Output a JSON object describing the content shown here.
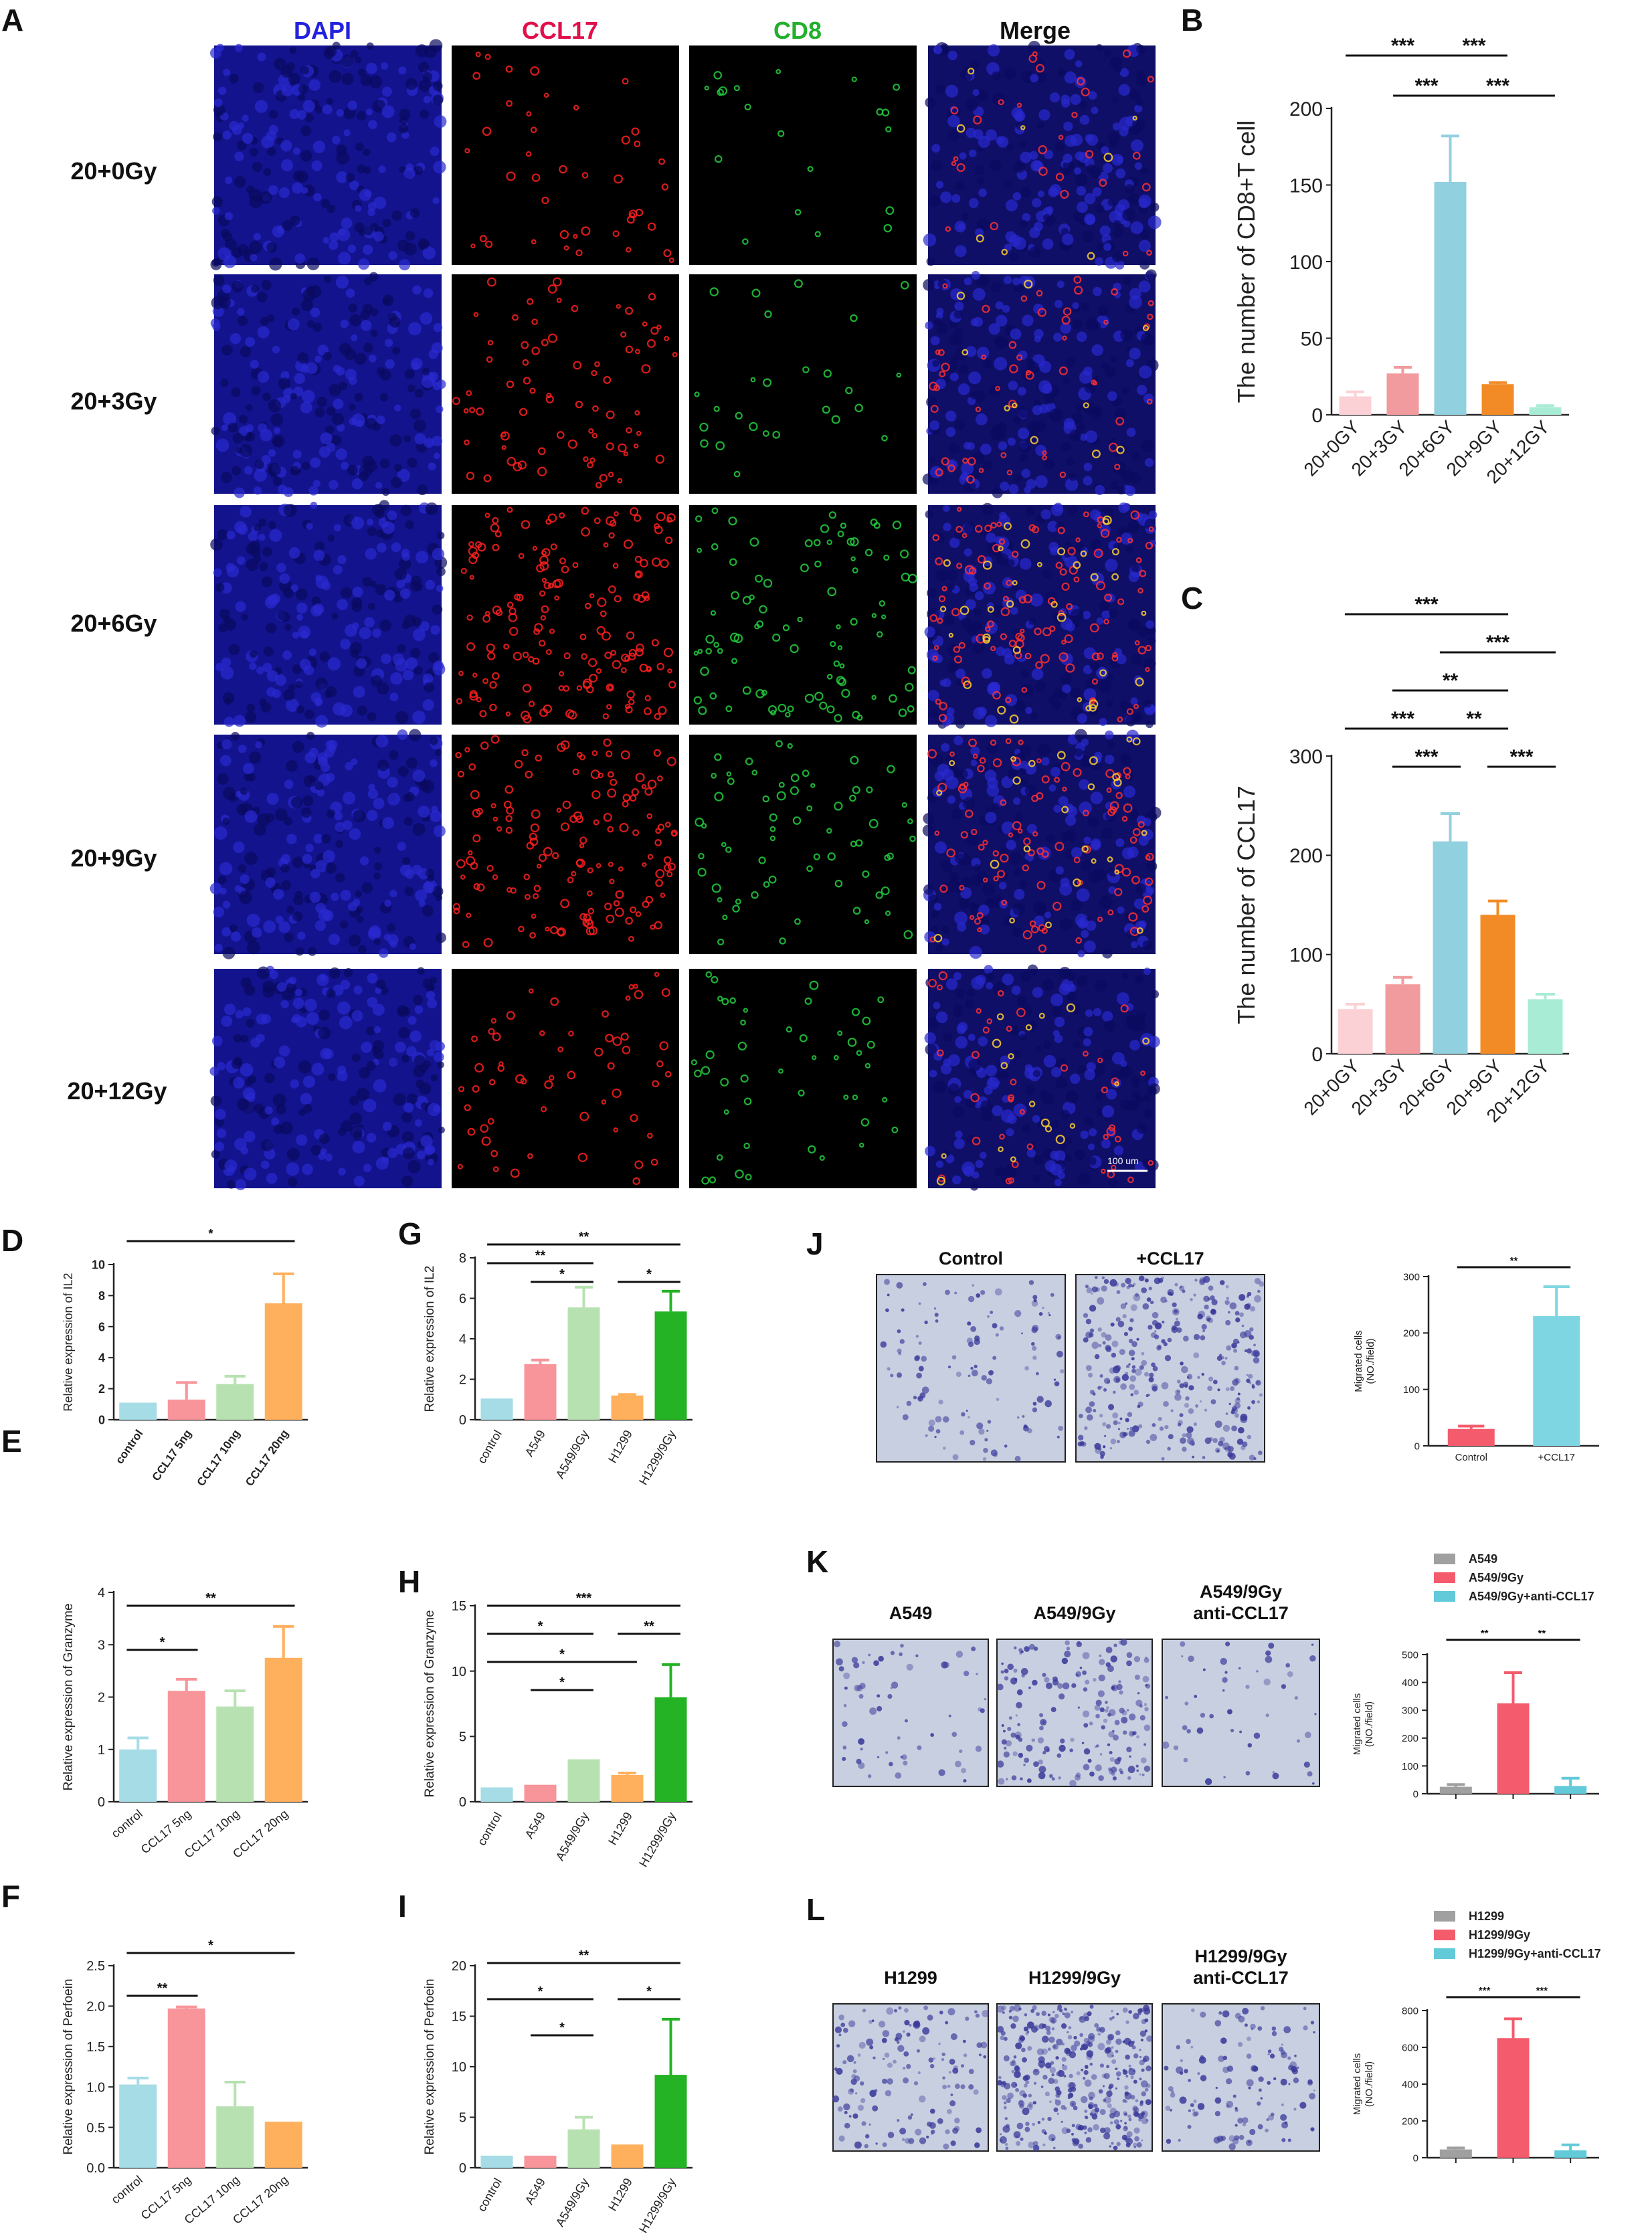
{
  "colors": {
    "dapi": "#1a1aa8",
    "ccl17": "#d8192e",
    "cd8": "#1fa62e",
    "merge": "#5a1040",
    "crystal_violet": "#3a3a9a",
    "transwell_bg": "#c8cfe0"
  },
  "panels": {
    "A": {
      "letter": "A",
      "column_titles": [
        {
          "label": "DAPI",
          "color": "#2222dd"
        },
        {
          "label": "CCL17",
          "color": "#e0104a"
        },
        {
          "label": "CD8",
          "color": "#22b02c"
        },
        {
          "label": "Merge",
          "color": "#111111"
        }
      ],
      "row_titles": [
        "20+0Gy",
        "20+3Gy",
        "20+6Gy",
        "20+9Gy",
        "20+12Gy"
      ],
      "scale_bar": "100 um",
      "signal_levels": {
        "ccl17": [
          0.25,
          0.45,
          0.95,
          0.85,
          0.35
        ],
        "cd8": [
          0.15,
          0.2,
          0.7,
          0.5,
          0.35
        ]
      }
    },
    "J": {
      "letter": "J",
      "images": [
        "Control",
        "+CCL17"
      ],
      "density": [
        0.3,
        0.85
      ]
    },
    "K": {
      "letter": "K",
      "images": [
        "A549",
        "A549/9Gy",
        "A549/9Gy\nanti-CCL17"
      ],
      "density": [
        0.15,
        0.45,
        0.12
      ]
    },
    "L": {
      "letter": "L",
      "images": [
        "H1299",
        "H1299/9Gy",
        "H1299/9Gy\nanti-CCL17"
      ],
      "density": [
        0.35,
        0.9,
        0.3
      ]
    }
  },
  "chart_data": [
    {
      "panel": "B",
      "type": "bar",
      "categories": [
        "20+0GY",
        "20+3GY",
        "20+6GY",
        "20+9GY",
        "20+12GY"
      ],
      "values": [
        12,
        27,
        152,
        20,
        5
      ],
      "errors": [
        3,
        4,
        30,
        1,
        1
      ],
      "colors": [
        "#fbd1d5",
        "#f29b9e",
        "#91d0df",
        "#f28b25",
        "#a9ecd6"
      ],
      "ylabel": "The number of CD8+T cell",
      "ylim": [
        0,
        200
      ],
      "yticks": [
        0,
        50,
        100,
        150,
        200
      ],
      "significance": [
        {
          "from": 0,
          "to": 2,
          "level": 0,
          "label": "***"
        },
        {
          "from": 2,
          "to": 3,
          "level": 0,
          "label": "***"
        },
        {
          "from": 1,
          "to": 2,
          "level": 1,
          "label": "***"
        },
        {
          "from": 2,
          "to": 4,
          "level": 1,
          "label": "***"
        }
      ]
    },
    {
      "panel": "C",
      "type": "bar",
      "categories": [
        "20+0GY",
        "20+3GY",
        "20+6GY",
        "20+9GY",
        "20+12GY"
      ],
      "values": [
        45,
        70,
        214,
        140,
        55
      ],
      "errors": [
        5,
        7,
        28,
        14,
        5
      ],
      "colors": [
        "#fbd1d5",
        "#f29b9e",
        "#91d0df",
        "#f28b25",
        "#a9ecd6"
      ],
      "ylabel": "The number of CCL17",
      "ylim": [
        0,
        300
      ],
      "yticks": [
        0,
        100,
        200,
        300
      ],
      "significance": [
        {
          "from": 0,
          "to": 3,
          "level": 0,
          "label": "***"
        },
        {
          "from": 2,
          "to": 4,
          "level": 1,
          "label": "***"
        },
        {
          "from": 1,
          "to": 3,
          "level": 2,
          "label": "**"
        },
        {
          "from": 0,
          "to": 2,
          "level": 3,
          "label": "***"
        },
        {
          "from": 2,
          "to": 3,
          "level": 3,
          "label": "**"
        },
        {
          "from": 1,
          "to": 2,
          "level": 4,
          "label": "***"
        },
        {
          "from": 3,
          "to": 4,
          "level": 4,
          "label": "***"
        }
      ]
    },
    {
      "panel": "D",
      "type": "bar",
      "categories": [
        "control",
        "CCL17 5ng",
        "CCL17 10ng",
        "CCL17 20ng"
      ],
      "values": [
        1.1,
        1.3,
        2.3,
        7.5
      ],
      "errors": [
        0,
        1.1,
        0.5,
        1.9
      ],
      "colors": [
        "#a6dce6",
        "#f7959b",
        "#b7e1b1",
        "#ffb05c"
      ],
      "ylabel": "Relative expression of IL2",
      "ylim": [
        0,
        10
      ],
      "yticks": [
        0,
        2,
        4,
        6,
        8,
        10
      ],
      "bold_ticks": true,
      "significance": [
        {
          "from": 0,
          "to": 3,
          "level": 0,
          "label": "*"
        }
      ]
    },
    {
      "panel": "E",
      "type": "bar",
      "categories": [
        "control",
        "CCL17 5ng",
        "CCL17 10ng",
        "CCL17 20ng"
      ],
      "values": [
        1.0,
        2.12,
        1.82,
        2.75
      ],
      "errors": [
        0.22,
        0.22,
        0.3,
        0.6
      ],
      "colors": [
        "#a6dce6",
        "#f7959b",
        "#b7e1b1",
        "#ffb05c"
      ],
      "ylabel": "Relative expression of Granzyme",
      "ylim": [
        0,
        4
      ],
      "yticks": [
        0,
        1,
        2,
        3,
        4
      ],
      "significance": [
        {
          "from": 0,
          "to": 3,
          "level": 0,
          "label": "**"
        },
        {
          "from": 0,
          "to": 1,
          "level": 1,
          "label": "*"
        }
      ]
    },
    {
      "panel": "F",
      "type": "bar",
      "categories": [
        "control",
        "CCL17 5ng",
        "CCL17 10ng",
        "CCL17 20ng"
      ],
      "values": [
        1.03,
        1.97,
        0.76,
        0.57
      ],
      "errors": [
        0.08,
        0.02,
        0.3,
        0
      ],
      "colors": [
        "#a6dce6",
        "#f7959b",
        "#b7e1b1",
        "#ffb05c"
      ],
      "ylabel": "Relative expression of Perfoein",
      "ylim": [
        0,
        2.5
      ],
      "yticks": [
        0.0,
        0.5,
        1.0,
        1.5,
        2.0,
        2.5
      ],
      "significance": [
        {
          "from": 0,
          "to": 3,
          "level": 0,
          "label": "*"
        },
        {
          "from": 0,
          "to": 1,
          "level": 1,
          "label": "**"
        }
      ]
    },
    {
      "panel": "G",
      "type": "bar",
      "categories": [
        "control",
        "A549",
        "A549/9Gy",
        "H1299",
        "H1299/9Gy"
      ],
      "values": [
        1.05,
        2.75,
        5.55,
        1.2,
        5.35
      ],
      "errors": [
        0,
        0.2,
        1.0,
        0.05,
        1.0
      ],
      "colors": [
        "#a6dce6",
        "#f7959b",
        "#b7e1b1",
        "#ffb05c",
        "#24b324"
      ],
      "ylabel": "Relative expression of IL2",
      "ylim": [
        0,
        8
      ],
      "yticks": [
        0,
        2,
        4,
        6,
        8
      ],
      "significance": [
        {
          "from": 0,
          "to": 4,
          "level": 0,
          "label": "**"
        },
        {
          "from": 0,
          "to": 2,
          "level": 1,
          "label": "**"
        },
        {
          "from": 1,
          "to": 2,
          "level": 2,
          "label": "*"
        },
        {
          "from": 3,
          "to": 4,
          "level": 2,
          "label": "*"
        }
      ]
    },
    {
      "panel": "H",
      "type": "bar",
      "categories": [
        "control",
        "A549",
        "A549/9Gy",
        "H1299",
        "H1299/9Gy"
      ],
      "values": [
        1.1,
        1.3,
        3.25,
        2.05,
        8.0
      ],
      "errors": [
        0,
        0,
        0,
        0.15,
        2.5
      ],
      "colors": [
        "#a6dce6",
        "#f7959b",
        "#b7e1b1",
        "#ffb05c",
        "#24b324"
      ],
      "ylabel": "Relative expression of Granzyme",
      "ylim": [
        0,
        15
      ],
      "yticks": [
        0,
        5,
        10,
        15
      ],
      "significance": [
        {
          "from": 0,
          "to": 4,
          "level": 0,
          "label": "***"
        },
        {
          "from": 0,
          "to": 2,
          "level": 1,
          "label": "*"
        },
        {
          "from": 3,
          "to": 4,
          "level": 1,
          "label": "**"
        },
        {
          "from": 0,
          "to": 3,
          "level": 2,
          "label": "*"
        },
        {
          "from": 1,
          "to": 2,
          "level": 3,
          "label": "*"
        }
      ]
    },
    {
      "panel": "I",
      "type": "bar",
      "categories": [
        "control",
        "A549",
        "A549/9Gy",
        "H1299",
        "H1299/9Gy"
      ],
      "values": [
        1.2,
        1.2,
        3.8,
        2.3,
        9.2
      ],
      "errors": [
        0,
        0,
        1.2,
        0,
        5.5
      ],
      "colors": [
        "#a6dce6",
        "#f7959b",
        "#b7e1b1",
        "#ffb05c",
        "#24b324"
      ],
      "ylabel": "Relative expression of Perfoein",
      "ylim": [
        0,
        20
      ],
      "yticks": [
        0,
        5,
        10,
        15,
        20
      ],
      "significance": [
        {
          "from": 0,
          "to": 4,
          "level": 0,
          "label": "**"
        },
        {
          "from": 0,
          "to": 2,
          "level": 1,
          "label": "*"
        },
        {
          "from": 3,
          "to": 4,
          "level": 1,
          "label": "*"
        },
        {
          "from": 1,
          "to": 2,
          "level": 2,
          "label": "*"
        }
      ]
    },
    {
      "panel": "J",
      "type": "bar",
      "categories": [
        "Control",
        "+CCL17"
      ],
      "values": [
        30,
        230
      ],
      "errors": [
        5,
        52
      ],
      "colors": [
        "#f45b6c",
        "#7fd6e3"
      ],
      "ylabel": "Migrated cells\n(NO./field)",
      "ylim": [
        0,
        300
      ],
      "yticks": [
        0,
        100,
        200,
        300
      ],
      "significance": [
        {
          "from": 0,
          "to": 1,
          "level": 0,
          "label": "**"
        }
      ]
    },
    {
      "panel": "K",
      "type": "bar",
      "categories": [
        "",
        "",
        ""
      ],
      "values": [
        25,
        325,
        28
      ],
      "errors": [
        8,
        110,
        28
      ],
      "colors": [
        "#a0a0a0",
        "#f45b6c",
        "#62cad8"
      ],
      "legend": [
        "A549",
        "A549/9Gy",
        "A549/9Gy+anti-CCL17"
      ],
      "ylabel": "Migrated cells\n(NO./field)",
      "ylim": [
        0,
        500
      ],
      "yticks": [
        0,
        100,
        200,
        300,
        400,
        500
      ],
      "significance": [
        {
          "from": 0,
          "to": 1,
          "level": 0,
          "label": "**"
        },
        {
          "from": 1,
          "to": 2,
          "level": 0,
          "label": "**"
        }
      ]
    },
    {
      "panel": "L",
      "type": "bar",
      "categories": [
        "",
        "",
        ""
      ],
      "values": [
        45,
        650,
        40
      ],
      "errors": [
        8,
        105,
        30
      ],
      "colors": [
        "#a0a0a0",
        "#f45b6c",
        "#62cad8"
      ],
      "legend": [
        "H1299",
        "H1299/9Gy",
        "H1299/9Gy+anti-CCL17"
      ],
      "ylabel": "Migrated cells\n(NO./field)",
      "ylim": [
        0,
        800
      ],
      "yticks": [
        0,
        200,
        400,
        600,
        800
      ],
      "significance": [
        {
          "from": 0,
          "to": 1,
          "level": 0,
          "label": "***"
        },
        {
          "from": 1,
          "to": 2,
          "level": 0,
          "label": "***"
        }
      ]
    }
  ]
}
